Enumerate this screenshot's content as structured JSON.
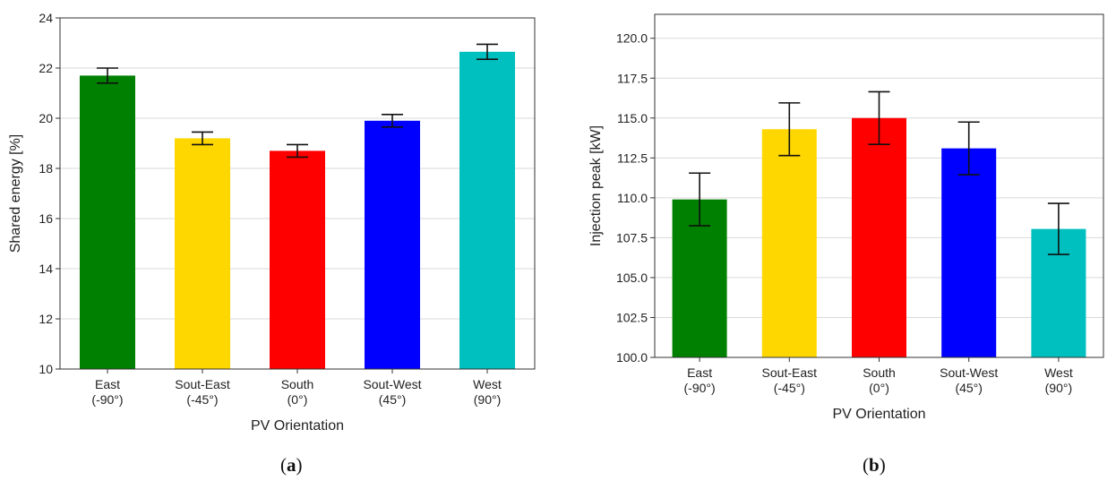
{
  "chart_data": [
    {
      "type": "bar",
      "panel_label": "a",
      "categories": [
        "East\n(-90°)",
        "Sout-East\n(-45°)",
        "South\n(0°)",
        "Sout-West\n(45°)",
        "West\n(90°)"
      ],
      "values": [
        21.7,
        19.2,
        18.7,
        19.9,
        22.65
      ],
      "error": [
        0.3,
        0.25,
        0.25,
        0.25,
        0.3
      ],
      "colors": [
        "#008000",
        "#FFD700",
        "#FF0000",
        "#0000FF",
        "#00BFBF"
      ],
      "xlabel": "PV Orientation",
      "ylabel": "Shared energy [%]",
      "ylim": [
        10,
        24
      ],
      "yticks": [
        "10",
        "12",
        "14",
        "16",
        "18",
        "20",
        "22",
        "24"
      ],
      "grid": "horizontal"
    },
    {
      "type": "bar",
      "panel_label": "b",
      "categories": [
        "East\n(-90°)",
        "Sout-East\n(-45°)",
        "South\n(0°)",
        "Sout-West\n(45°)",
        "West\n(90°)"
      ],
      "values": [
        109.9,
        114.3,
        115.0,
        113.1,
        108.05
      ],
      "error": [
        1.65,
        1.65,
        1.65,
        1.65,
        1.6
      ],
      "colors": [
        "#008000",
        "#FFD700",
        "#FF0000",
        "#0000FF",
        "#00BFBF"
      ],
      "xlabel": "PV Orientation",
      "ylabel": "Injection peak [kW]",
      "ylim": [
        100,
        121.5
      ],
      "yticks": [
        "100.0",
        "102.5",
        "105.0",
        "107.5",
        "110.0",
        "112.5",
        "115.0",
        "117.5",
        "120.0"
      ],
      "grid": "horizontal"
    }
  ]
}
